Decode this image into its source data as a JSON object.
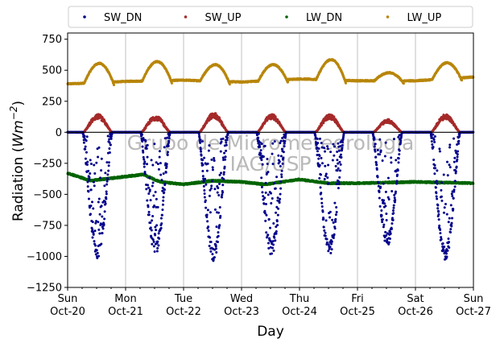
{
  "chart_data": {
    "type": "scatter",
    "xlabel": "Day",
    "ylabel_prefix": "Radiation (",
    "ylabel_unit": "Wm",
    "ylabel_exp": "−2",
    "ylabel_suffix": ")",
    "ylim": [
      -1250,
      800
    ],
    "yticks": [
      -1250,
      -1000,
      -750,
      -500,
      -250,
      0,
      250,
      500,
      750
    ],
    "xlim": [
      0,
      7
    ],
    "xticks": [
      {
        "day": 0,
        "weekday": "Sun",
        "date": "Oct-20"
      },
      {
        "day": 1,
        "weekday": "Mon",
        "date": "Oct-21"
      },
      {
        "day": 2,
        "weekday": "Tue",
        "date": "Oct-22"
      },
      {
        "day": 3,
        "weekday": "Wed",
        "date": "Oct-23"
      },
      {
        "day": 4,
        "weekday": "Thu",
        "date": "Oct-24"
      },
      {
        "day": 5,
        "weekday": "Fri",
        "date": "Oct-25"
      },
      {
        "day": 6,
        "weekday": "Sat",
        "date": "Oct-26"
      },
      {
        "day": 7,
        "weekday": "Sun",
        "date": "Oct-27"
      }
    ],
    "grid": "vertical",
    "legend_position": "top",
    "watermark_line1": "Grupo de Micrometeorologia",
    "watermark_line2": "IAG/USP",
    "series": [
      {
        "name": "SW_DN",
        "color": "#00008b",
        "daily_peaks": [
          -1040,
          -1000,
          -1040,
          -1000,
          -1000,
          -920,
          -1040
        ]
      },
      {
        "name": "SW_UP",
        "color": "#a52a2a",
        "daily_peaks": [
          140,
          130,
          150,
          140,
          140,
          100,
          140
        ]
      },
      {
        "name": "LW_DN",
        "color": "#006400",
        "levels": [
          [
            0,
            -330
          ],
          [
            0.4,
            -390
          ],
          [
            1.3,
            -340
          ],
          [
            1.6,
            -400
          ],
          [
            2.0,
            -420
          ],
          [
            2.5,
            -390
          ],
          [
            3.0,
            -400
          ],
          [
            3.4,
            -420
          ],
          [
            4.0,
            -380
          ],
          [
            4.5,
            -410
          ],
          [
            5.0,
            -410
          ],
          [
            6.0,
            -400
          ],
          [
            7.0,
            -410
          ]
        ]
      },
      {
        "name": "LW_UP",
        "color": "#b8860b",
        "night_levels": [
          [
            0,
            390
          ],
          [
            1.0,
            410
          ],
          [
            2.0,
            420
          ],
          [
            3.0,
            405
          ],
          [
            4.0,
            430
          ],
          [
            5.0,
            415
          ],
          [
            6.0,
            415
          ],
          [
            7.0,
            445
          ]
        ],
        "daily_peaks": [
          555,
          570,
          545,
          545,
          585,
          480,
          560
        ]
      }
    ]
  }
}
